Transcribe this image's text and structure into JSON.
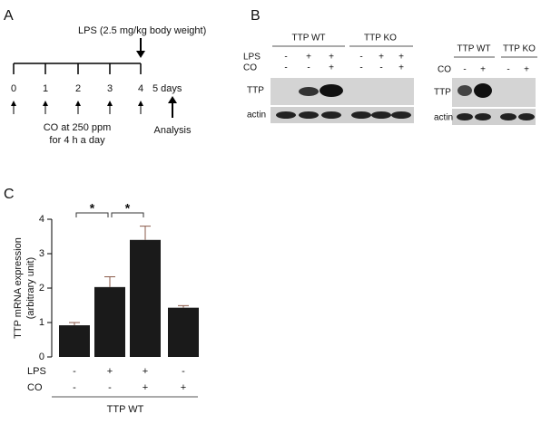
{
  "panel_a": {
    "letter": "A",
    "lps_label": "LPS (2.5 mg/kg body weight)",
    "days": [
      "0",
      "1",
      "2",
      "3",
      "4"
    ],
    "end_label": "5 days",
    "co_label": [
      "CO at 250 ppm",
      "for 4 h a day"
    ],
    "analysis_label": "Analysis"
  },
  "panel_b": {
    "letter": "B",
    "left_blot": {
      "groups": [
        "TTP WT",
        "TTP KO"
      ],
      "row_labels": [
        "LPS",
        "CO"
      ],
      "rows": [
        [
          "-",
          "+",
          "+",
          "-",
          "+",
          "+"
        ],
        [
          "-",
          "-",
          "+",
          "-",
          "-",
          "+"
        ]
      ],
      "bands": [
        "TTP",
        "actin"
      ]
    },
    "right_blot": {
      "groups": [
        "TTP WT",
        "TTP KO"
      ],
      "row_labels": [
        "CO"
      ],
      "rows": [
        [
          "-",
          "+",
          "-",
          "+"
        ]
      ],
      "bands": [
        "TTP",
        "actin"
      ]
    }
  },
  "chart_data": {
    "type": "bar",
    "letter": "C",
    "y_label": [
      "TTP  mRNA expression",
      "(arbitrary unit)"
    ],
    "values": [
      0.92,
      2.03,
      3.4,
      1.43
    ],
    "errors": [
      0.08,
      0.3,
      0.4,
      0.06
    ],
    "color": "#1a1a1a",
    "ylim": [
      0,
      4
    ],
    "yticks": [
      0,
      1,
      2,
      3,
      4
    ],
    "treatment_labels": [
      "LPS",
      "CO"
    ],
    "treatments": [
      [
        "-",
        "+",
        "+",
        "-"
      ],
      [
        "-",
        "-",
        "+",
        "+"
      ]
    ],
    "x_label": "TTP WT",
    "significance": [
      {
        "between": [
          0,
          1
        ],
        "label": "*"
      },
      {
        "between": [
          1,
          2
        ],
        "label": "*"
      }
    ]
  }
}
